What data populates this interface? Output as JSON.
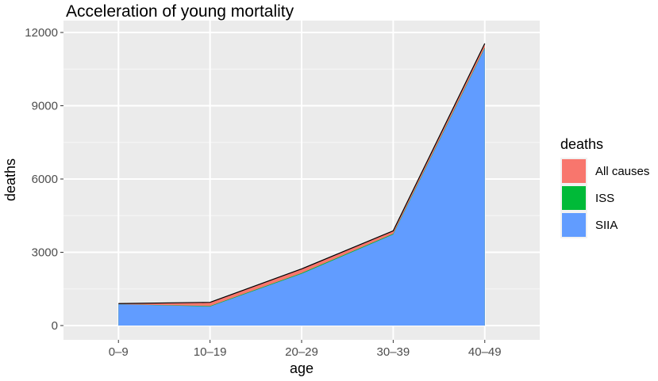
{
  "chart_data": {
    "type": "area",
    "title": "Acceleration of young mortality",
    "xlabel": "age",
    "ylabel": "deaths",
    "categories": [
      "0–9",
      "10–19",
      "20–29",
      "30–39",
      "40–49"
    ],
    "ylim": [
      0,
      12000
    ],
    "yticks": [
      0,
      3000,
      6000,
      9000,
      12000
    ],
    "grid": true,
    "stacked": false,
    "legend": {
      "title": "deaths",
      "position": "right"
    },
    "series": [
      {
        "name": "All causes",
        "color": "#F8766D",
        "values": [
          900,
          950,
          2320,
          3880,
          11550
        ]
      },
      {
        "name": "ISS",
        "color": "#00BA38",
        "values": [
          870,
          800,
          2150,
          3760,
          11380
        ]
      },
      {
        "name": "SIIA",
        "color": "#619CFF",
        "values": [
          870,
          780,
          2120,
          3730,
          11350
        ]
      }
    ]
  }
}
